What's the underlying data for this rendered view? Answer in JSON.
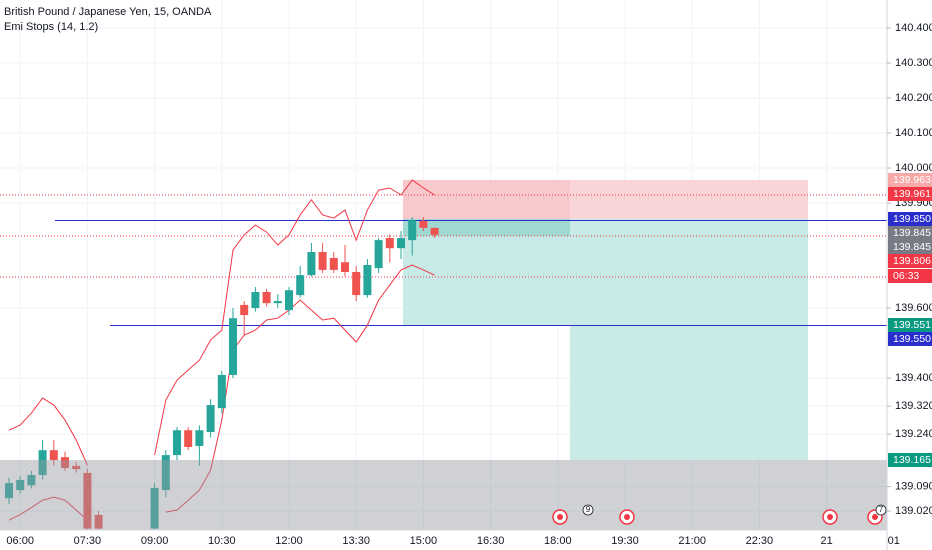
{
  "chart_data": {
    "type": "candlestick",
    "title": "British Pound / Japanese Yen, 15, OANDA",
    "subtitle": "Emi Stops (14, 1.2)",
    "categories": [
      null,
      "06:00",
      null,
      null,
      null,
      null,
      null,
      "07:30",
      null,
      null,
      null,
      null,
      null,
      "09:00",
      null,
      null,
      null,
      null,
      null,
      "10:30",
      null,
      null,
      null,
      null,
      null,
      "12:00",
      null,
      null,
      null,
      null,
      null,
      "13:30",
      null,
      null,
      null,
      null,
      null,
      "15:00",
      null,
      null,
      null,
      null,
      null,
      "16:30",
      null,
      null,
      null,
      null,
      null,
      "18:00",
      null,
      null,
      null,
      null,
      null,
      "19:30",
      null,
      null,
      null,
      null,
      null,
      "21:00",
      null,
      null,
      null,
      null,
      null,
      "22:30",
      null,
      null,
      null,
      null,
      null,
      "21",
      null,
      null,
      null,
      null,
      null,
      "01"
    ],
    "open": [
      139.057,
      139.08,
      139.094,
      139.123,
      139.194,
      139.174,
      139.149,
      139.129,
      139.009,
      null,
      null,
      null,
      null,
      138.97,
      139.08,
      139.18,
      139.251,
      139.206,
      139.246,
      139.314,
      139.409,
      139.609,
      139.6,
      139.646,
      139.614,
      139.594,
      139.637,
      139.694,
      139.76,
      139.743,
      139.731,
      139.703,
      139.637,
      139.714,
      139.8,
      139.771,
      139.794,
      139.849,
      139.829,
      null,
      null,
      null,
      null,
      null,
      null,
      null,
      null,
      null,
      null,
      null,
      null,
      null,
      null,
      null,
      null,
      null,
      null,
      null,
      null,
      null,
      null,
      null,
      null,
      null,
      null,
      null,
      null,
      null,
      null,
      null,
      null,
      null,
      null,
      null,
      null,
      null,
      null,
      null,
      null,
      null
    ],
    "high": [
      139.115,
      139.12,
      139.135,
      139.223,
      139.223,
      139.19,
      139.16,
      139.14,
      139.02,
      null,
      null,
      null,
      null,
      139.1,
      139.194,
      139.26,
      139.26,
      139.265,
      139.34,
      139.42,
      139.6,
      139.62,
      139.66,
      139.655,
      139.64,
      139.66,
      139.72,
      139.786,
      139.786,
      139.76,
      139.78,
      139.72,
      139.74,
      139.8,
      139.81,
      139.82,
      139.86,
      139.86,
      139.83,
      null,
      null,
      null,
      null,
      null,
      null,
      null,
      null,
      null,
      null,
      null,
      null,
      null,
      null,
      null,
      null,
      null,
      null,
      null,
      null,
      null,
      null,
      null,
      null,
      null,
      null,
      null,
      null,
      null,
      null,
      null,
      null,
      null,
      null,
      null,
      null,
      null,
      null,
      null,
      null,
      null
    ],
    "low": [
      139.04,
      139.07,
      139.085,
      139.11,
      139.15,
      139.135,
      139.13,
      138.966,
      138.966,
      null,
      null,
      null,
      null,
      138.966,
      139.06,
      139.166,
      139.194,
      139.15,
      139.23,
      139.3,
      139.4,
      139.52,
      139.59,
      139.605,
      139.6,
      139.58,
      139.63,
      139.69,
      139.7,
      139.7,
      139.69,
      139.62,
      139.63,
      139.7,
      139.73,
      139.74,
      139.75,
      139.82,
      139.8,
      null,
      null,
      null,
      null,
      null,
      null,
      null,
      null,
      null,
      null,
      null,
      null,
      null,
      null,
      null,
      null,
      null,
      null,
      null,
      null,
      null,
      null,
      null,
      null,
      null,
      null,
      null,
      null,
      null,
      null,
      null,
      null,
      null,
      null,
      null,
      null,
      null,
      null,
      null,
      null,
      null
    ],
    "close": [
      139.1,
      139.109,
      139.123,
      139.194,
      139.166,
      139.143,
      139.14,
      138.97,
      138.97,
      null,
      null,
      null,
      null,
      139.086,
      139.18,
      139.251,
      139.203,
      139.251,
      139.323,
      139.409,
      139.571,
      139.58,
      139.646,
      139.614,
      139.62,
      139.651,
      139.694,
      139.76,
      139.709,
      139.709,
      139.703,
      139.637,
      139.723,
      139.794,
      139.771,
      139.8,
      139.851,
      139.829,
      139.809,
      null,
      null,
      null,
      null,
      null,
      null,
      null,
      null,
      null,
      null,
      null,
      null,
      null,
      null,
      null,
      null,
      null,
      null,
      null,
      null,
      null,
      null,
      null,
      null,
      null,
      null,
      null,
      null,
      null,
      null,
      null,
      null,
      null,
      null,
      null,
      null,
      null,
      null,
      null,
      null,
      null
    ],
    "up_color": "#26a69a",
    "down_color": "#ef5350",
    "indicator_lines": [
      {
        "color": "#f23645",
        "values": [
          139.251,
          139.266,
          139.3,
          139.343,
          139.323,
          139.28,
          139.223,
          139.151,
          null,
          null,
          null,
          null,
          null,
          139.18,
          139.337,
          139.394,
          139.423,
          139.451,
          139.509,
          139.537,
          139.766,
          139.809,
          139.837,
          139.817,
          139.78,
          139.809,
          139.866,
          139.909,
          139.866,
          139.857,
          139.88,
          139.794,
          139.88,
          139.937,
          139.943,
          139.923,
          139.966,
          139.943,
          139.923,
          null,
          null,
          null,
          null,
          null,
          null,
          null,
          null,
          null,
          null,
          null,
          null,
          null,
          null,
          null,
          null,
          null,
          null,
          null,
          null,
          null,
          null,
          null,
          null,
          null,
          null,
          null,
          null,
          null,
          null,
          null,
          null,
          null,
          null,
          null,
          null,
          null,
          null,
          null,
          null,
          null
        ]
      },
      {
        "color": "#f23645",
        "values": [
          138.994,
          139.01,
          139.03,
          139.051,
          139.06,
          139.051,
          139.023,
          138.994,
          null,
          null,
          null,
          null,
          null,
          null,
          139.017,
          139.023,
          139.051,
          139.08,
          139.137,
          139.28,
          139.48,
          139.523,
          139.537,
          139.566,
          139.571,
          139.594,
          139.623,
          139.594,
          139.566,
          139.571,
          139.537,
          139.503,
          139.551,
          139.623,
          139.666,
          139.709,
          139.723,
          139.709,
          139.694,
          null,
          null,
          null,
          null,
          null,
          null,
          null,
          null,
          null,
          null,
          null,
          null,
          null,
          null,
          null,
          null,
          null,
          null,
          null,
          null,
          null,
          null,
          null,
          null,
          null,
          null,
          null,
          null,
          null,
          null,
          null,
          null,
          null,
          null,
          null,
          null,
          null,
          null,
          null,
          null,
          null
        ]
      }
    ],
    "horizontal_lines": [
      {
        "value": 139.85,
        "color": "#2a2ecd"
      },
      {
        "value": 139.55,
        "color": "#2a2ecd"
      }
    ],
    "ylim": [
      138.966,
      140.48
    ],
    "yticks": [
      {
        "value": 140.4,
        "label": "140.400"
      },
      {
        "value": 140.3,
        "label": "140.300"
      },
      {
        "value": 140.2,
        "label": "140.200"
      },
      {
        "value": 140.1,
        "label": "140.100"
      },
      {
        "value": 140.0,
        "label": "140.000"
      },
      {
        "value": 139.9,
        "label": "139.900"
      },
      {
        "value": 139.6,
        "label": "139.600"
      },
      {
        "value": 139.4,
        "label": "139.400"
      },
      {
        "value": 139.32,
        "label": "139.320"
      },
      {
        "value": 139.24,
        "label": "139.240"
      },
      {
        "value": 139.09,
        "label": "139.090"
      },
      {
        "value": 139.02,
        "label": "139.020"
      }
    ],
    "grid": true,
    "price_tags": [
      {
        "label": "139.963",
        "color": "#f7a9a9"
      },
      {
        "label": "139.961",
        "color": "#f23645"
      },
      {
        "label": "139.850",
        "color": "#2a2ecd"
      },
      {
        "label": "139.845",
        "color": "#787b86"
      },
      {
        "label": "139.845",
        "color": "#787b86"
      },
      {
        "label": "139.806",
        "color": "#f23645"
      },
      {
        "label": "06:33",
        "color": "#f23645"
      },
      {
        "label": "139.551",
        "color": "#089981"
      },
      {
        "label": "139.550",
        "color": "#2a2ecd"
      },
      {
        "label": "139.165",
        "color": "#089981"
      }
    ],
    "event_badges": [
      9,
      7
    ]
  }
}
